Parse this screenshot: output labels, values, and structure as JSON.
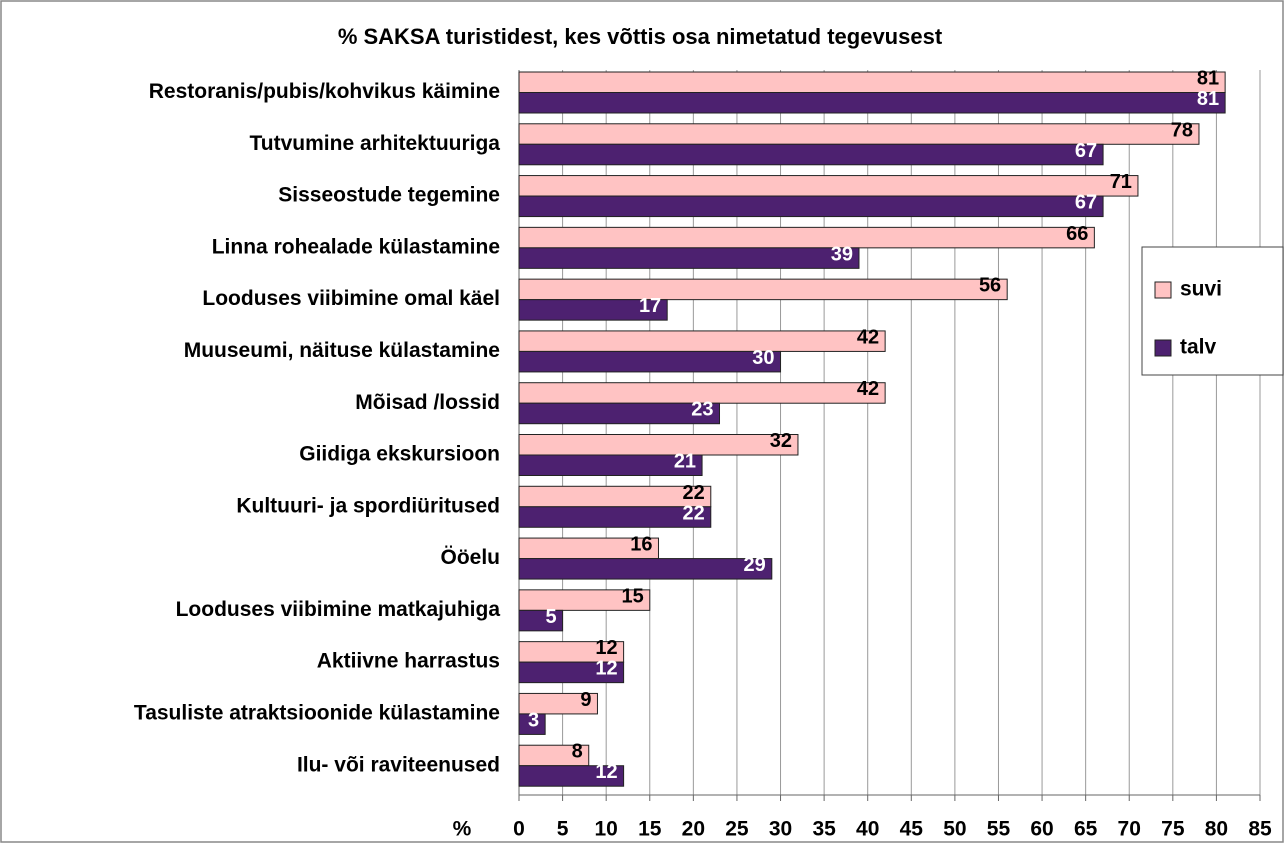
{
  "chart_data": {
    "type": "hbar",
    "title": "% SAKSA turistidest, kes võttis osa nimetatud tegevusest",
    "x_label": "%",
    "categories": [
      "Restoranis/pubis/kohvikus käimine",
      "Tutvumine arhitektuuriga",
      "Sisseostude tegemine",
      "Linna rohealade külastamine",
      "Looduses viibimine omal käel",
      "Muuseumi, näituse külastamine",
      "Mõisad /lossid ",
      "Giidiga ekskursioon",
      "Kultuuri- ja spordiüritused",
      "Ööelu",
      "Looduses viibimine matkajuhiga",
      "Aktiivne harrastus",
      "Tasuliste atraktsioonide külastamine",
      "Ilu- või raviteenused"
    ],
    "series": [
      {
        "name": "suvi",
        "color": "#ffc3c3",
        "label_color": "#000000",
        "values": [
          81,
          78,
          71,
          66,
          56,
          42,
          42,
          32,
          22,
          16,
          15,
          12,
          9,
          8
        ]
      },
      {
        "name": "talv",
        "color": "#4d2170",
        "label_color": "#ffffff",
        "values": [
          81,
          67,
          67,
          39,
          17,
          30,
          23,
          21,
          22,
          29,
          5,
          12,
          3,
          12
        ]
      }
    ],
    "xlim": [
      0,
      85
    ],
    "xticks": [
      0,
      5,
      10,
      15,
      20,
      25,
      30,
      35,
      40,
      45,
      50,
      55,
      60,
      65,
      70,
      75,
      80,
      85
    ],
    "grid": true,
    "legend": "right"
  }
}
